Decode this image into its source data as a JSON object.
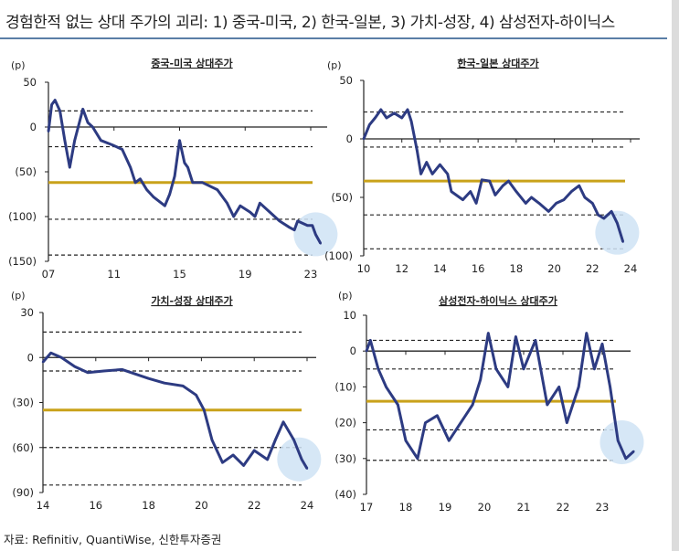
{
  "title": "경험한적 없는 상대 주가의 괴리: 1) 중국-미국, 2) 한국-일본, 3) 가치-성장, 4) 삼성전자-하이닉스",
  "source": "자료: Refinitiv, QuantiWise, 신한투자증권",
  "colors": {
    "line": "#2d3b82",
    "mean": "#c9a21a",
    "highlight": "#cfe3f5",
    "dash": "#222222"
  },
  "chart_data": [
    {
      "type": "line",
      "title": "중국-미국 상대주가",
      "ylabel": "(p)",
      "ylim": [
        -150,
        50
      ],
      "yticks": [
        50,
        0,
        -50,
        -100,
        -150
      ],
      "ytick_labels": [
        "50",
        "0",
        "(50)",
        "(100)",
        "(150)"
      ],
      "xlim": [
        2007,
        2024
      ],
      "xticks": [
        2007,
        2011,
        2015,
        2019,
        2023
      ],
      "xtick_labels": [
        "07",
        "11",
        "15",
        "19",
        "23"
      ],
      "mean": -62,
      "bands": [
        18,
        -22,
        -103,
        -143
      ],
      "x": [
        2007,
        2007.2,
        2007.4,
        2007.7,
        2008,
        2008.3,
        2008.6,
        2009.1,
        2009.4,
        2009.7,
        2010.2,
        2010.9,
        2011.5,
        2012,
        2012.3,
        2012.6,
        2013,
        2013.4,
        2014.1,
        2014.4,
        2014.7,
        2015,
        2015.3,
        2015.5,
        2015.8,
        2016.4,
        2017.3,
        2017.9,
        2018.3,
        2018.7,
        2019.3,
        2019.6,
        2019.9,
        2020.5,
        2021.1,
        2021.7,
        2022,
        2022.2,
        2022.8,
        2023.1,
        2023.3,
        2023.6
      ],
      "y": [
        -5,
        25,
        30,
        18,
        -15,
        -45,
        -15,
        20,
        5,
        0,
        -15,
        -20,
        -25,
        -45,
        -62,
        -58,
        -70,
        -78,
        -88,
        -75,
        -55,
        -15,
        -40,
        -45,
        -62,
        -62,
        -70,
        -85,
        -100,
        -88,
        -95,
        -100,
        -85,
        -95,
        -105,
        -112,
        -115,
        -105,
        -110,
        -110,
        -120,
        -130
      ],
      "highlight_at": 2023.3
    },
    {
      "type": "line",
      "title": "한국-일본 상대주가",
      "ylabel": "(p)",
      "ylim": [
        -100,
        50
      ],
      "yticks": [
        50,
        0,
        -50,
        -100
      ],
      "ytick_labels": [
        "50",
        "0",
        "(50)",
        "(100)"
      ],
      "xlim": [
        2010,
        2024
      ],
      "xticks": [
        2010,
        2012,
        2014,
        2016,
        2018,
        2020,
        2022,
        2024
      ],
      "xtick_labels": [
        "10",
        "12",
        "14",
        "16",
        "18",
        "20",
        "22",
        "24"
      ],
      "mean": -36,
      "bands": [
        23,
        -7,
        -65,
        -94
      ],
      "x": [
        2010,
        2010.3,
        2010.6,
        2010.9,
        2011.2,
        2011.6,
        2012,
        2012.3,
        2012.5,
        2012.8,
        2013,
        2013.3,
        2013.6,
        2014,
        2014.4,
        2014.6,
        2015.2,
        2015.6,
        2015.9,
        2016.2,
        2016.6,
        2016.9,
        2017.3,
        2017.6,
        2018,
        2018.5,
        2018.8,
        2019.2,
        2019.7,
        2020.1,
        2020.5,
        2020.9,
        2021.3,
        2021.6,
        2022,
        2022.3,
        2022.6,
        2023,
        2023.3,
        2023.6
      ],
      "y": [
        0,
        12,
        18,
        25,
        18,
        22,
        18,
        25,
        15,
        -10,
        -30,
        -20,
        -30,
        -22,
        -30,
        -45,
        -52,
        -45,
        -55,
        -35,
        -36,
        -48,
        -40,
        -36,
        -45,
        -55,
        -50,
        -55,
        -62,
        -55,
        -52,
        -45,
        -40,
        -50,
        -55,
        -65,
        -68,
        -62,
        -72,
        -88
      ],
      "highlight_at": 2023.3
    },
    {
      "type": "line",
      "title": "가치-성장 상대주가",
      "ylabel": "(p)",
      "ylim": [
        -90,
        30
      ],
      "yticks": [
        30,
        0,
        -30,
        -60,
        -90
      ],
      "ytick_labels": [
        "30",
        "0",
        "(30)",
        "(60)",
        "(90)"
      ],
      "xlim": [
        2014,
        2024
      ],
      "xticks": [
        2014,
        2016,
        2018,
        2020,
        2022,
        2024
      ],
      "xtick_labels": [
        "14",
        "16",
        "18",
        "20",
        "22",
        "24"
      ],
      "mean": -35,
      "bands": [
        17,
        -9,
        -60,
        -85
      ],
      "x": [
        2014,
        2014.3,
        2014.7,
        2015.2,
        2015.7,
        2016.3,
        2017,
        2017.5,
        2018,
        2018.6,
        2019.3,
        2019.8,
        2020.1,
        2020.4,
        2020.8,
        2021.2,
        2021.6,
        2022,
        2022.5,
        2022.8,
        2023.1,
        2023.5,
        2023.8,
        2024
      ],
      "y": [
        -3,
        3,
        0,
        -6,
        -10,
        -9,
        -8,
        -11,
        -14,
        -17,
        -19,
        -25,
        -35,
        -55,
        -70,
        -65,
        -72,
        -62,
        -68,
        -55,
        -43,
        -55,
        -68,
        -74
      ],
      "highlight_at": 2023.7
    },
    {
      "type": "line",
      "title": "삼성전자-하이닉스 상대주가",
      "ylabel": "(p)",
      "ylim": [
        -40,
        10
      ],
      "yticks": [
        10,
        0,
        -10,
        -20,
        -30,
        -40
      ],
      "ytick_labels": [
        "10",
        "0",
        "(10)",
        "(20)",
        "(30)",
        "(40)"
      ],
      "xlim": [
        2017,
        2024
      ],
      "xticks": [
        2017,
        2018,
        2019,
        2020,
        2021,
        2022,
        2023
      ],
      "xtick_labels": [
        "17",
        "18",
        "19",
        "20",
        "21",
        "22",
        "23"
      ],
      "mean": -14,
      "bands": [
        3,
        -5,
        -22,
        -30.5
      ],
      "x": [
        2017,
        2017.1,
        2017.3,
        2017.5,
        2017.8,
        2018,
        2018.3,
        2018.5,
        2018.8,
        2019.1,
        2019.4,
        2019.7,
        2019.9,
        2020.1,
        2020.3,
        2020.6,
        2020.8,
        2021,
        2021.3,
        2021.6,
        2021.9,
        2022.1,
        2022.4,
        2022.6,
        2022.8,
        2023,
        2023.2,
        2023.4,
        2023.6,
        2023.8
      ],
      "y": [
        0,
        3,
        -5,
        -10,
        -15,
        -25,
        -30,
        -20,
        -18,
        -25,
        -20,
        -15,
        -8,
        5,
        -5,
        -10,
        4,
        -5,
        3,
        -15,
        -10,
        -20,
        -10,
        5,
        -5,
        2,
        -10,
        -25,
        -30,
        -28
      ],
      "highlight_at": 2023.5
    }
  ]
}
